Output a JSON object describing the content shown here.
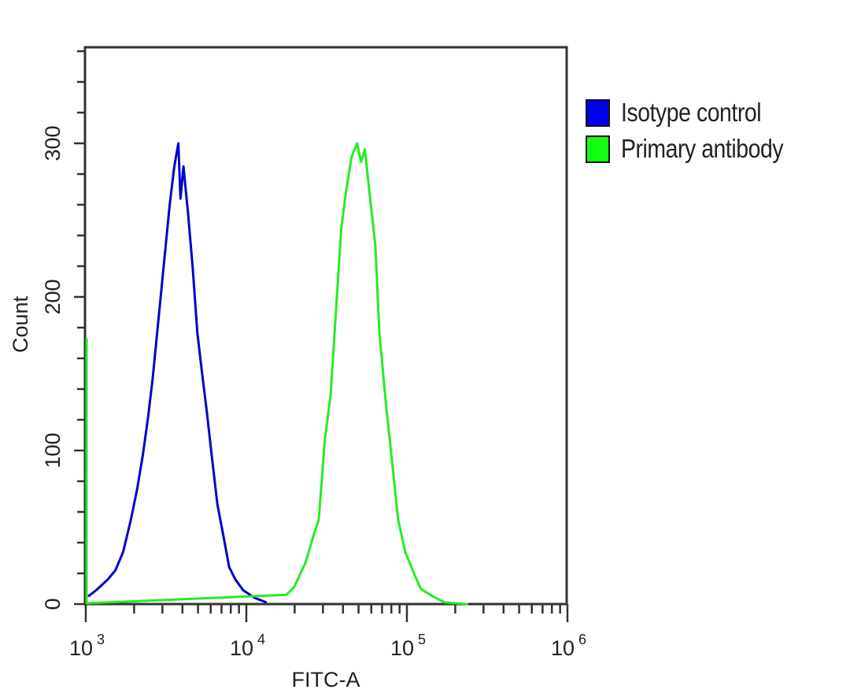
{
  "chart_data": {
    "type": "line",
    "subtype": "flow-cytometry-histogram",
    "title": "",
    "xlabel": "FITC-A",
    "ylabel": "Count",
    "xscale": "log",
    "xlim": [
      1000,
      1000000
    ],
    "ylim": [
      0,
      362
    ],
    "x_ticks": [
      {
        "value": 1000,
        "base": "10",
        "exp": "3"
      },
      {
        "value": 10000,
        "base": "10",
        "exp": "4"
      },
      {
        "value": 100000,
        "base": "10",
        "exp": "5"
      },
      {
        "value": 1000000,
        "base": "10",
        "exp": "6"
      }
    ],
    "y_ticks": [
      0,
      100,
      200,
      300
    ],
    "y_minor_step": 20,
    "grid": false,
    "legend_position": "right-top",
    "series": [
      {
        "name": "Isotype control",
        "color": "#0000cc",
        "x": [
          1035,
          1160,
          1370,
          1530,
          1710,
          1910,
          2090,
          2260,
          2440,
          2610,
          2820,
          3050,
          3330,
          3560,
          3770,
          3890,
          4060,
          4340,
          4640,
          4950,
          5290,
          5660,
          6110,
          6600,
          7210,
          7820,
          8550,
          9560,
          11300,
          13380
        ],
        "values": [
          5,
          9,
          16,
          22,
          34,
          55,
          75,
          96,
          121,
          147,
          183,
          219,
          260,
          285,
          300,
          264,
          285,
          254,
          218,
          177,
          151,
          126,
          95,
          65,
          44,
          24,
          16,
          9,
          4,
          1
        ]
      },
      {
        "name": "Primary antibody",
        "color": "#22ee22",
        "x": [
          1000,
          17750,
          19830,
          23370,
          26110,
          28240,
          30790,
          33550,
          36580,
          39060,
          41700,
          45180,
          48940,
          51780,
          54760,
          59050,
          63670,
          67340,
          74040,
          80230,
          88170,
          97660,
          109600,
          121900,
          145200,
          172600,
          240900
        ],
        "values": [
          173,
          6,
          11,
          27,
          44,
          55,
          106,
          137,
          199,
          245,
          268,
          291,
          300,
          288,
          296,
          264,
          233,
          177,
          130,
          96,
          55,
          34,
          21,
          10,
          5,
          1,
          0
        ]
      }
    ]
  },
  "legend": {
    "items": [
      {
        "label": "Isotype control",
        "color": "#0000ee"
      },
      {
        "label": "Primary antibody",
        "color": "#11ff11"
      }
    ]
  },
  "axes": {
    "x_title": "FITC-A",
    "y_title": "Count",
    "y_labels": [
      "0",
      "100",
      "200",
      "300"
    ],
    "x_labels": [
      {
        "base": "10",
        "exp": "3"
      },
      {
        "base": "10",
        "exp": "4"
      },
      {
        "base": "10",
        "exp": "5"
      },
      {
        "base": "10",
        "exp": "6"
      }
    ]
  }
}
